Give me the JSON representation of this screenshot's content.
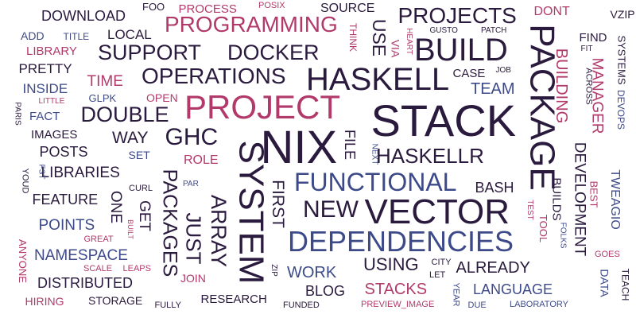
{
  "colors": {
    "dark": "#2a1a3e",
    "pink": "#b23a6a",
    "blue": "#3d4a8a"
  },
  "words": [
    {
      "text": "NIX",
      "color": "dark"
    },
    {
      "text": "STACK",
      "color": "dark"
    },
    {
      "text": "PROJECT",
      "color": "pink"
    },
    {
      "text": "SYSTEM",
      "color": "dark"
    },
    {
      "text": "PACKAGE",
      "color": "dark"
    },
    {
      "text": "HASKELL",
      "color": "dark"
    },
    {
      "text": "VECTOR",
      "color": "dark"
    },
    {
      "text": "DEPENDENCIES",
      "color": "blue"
    },
    {
      "text": "BUILD",
      "color": "dark"
    },
    {
      "text": "FUNCTIONAL",
      "color": "blue"
    },
    {
      "text": "PROGRAMMING",
      "color": "pink"
    },
    {
      "text": "PROJECTS",
      "color": "dark"
    },
    {
      "text": "HASKELLR",
      "color": "dark"
    },
    {
      "text": "NEW",
      "color": "dark"
    },
    {
      "text": "OPERATIONS",
      "color": "dark"
    },
    {
      "text": "DOCKER",
      "color": "dark"
    },
    {
      "text": "SUPPORT",
      "color": "dark"
    },
    {
      "text": "DOUBLE",
      "color": "dark"
    },
    {
      "text": "GHC",
      "color": "dark"
    },
    {
      "text": "PACKAGES",
      "color": "dark"
    },
    {
      "text": "JUST",
      "color": "dark"
    },
    {
      "text": "ARRAY",
      "color": "dark"
    },
    {
      "text": "FIRST",
      "color": "dark"
    },
    {
      "text": "DEVELOPMENT",
      "color": "dark"
    },
    {
      "text": "BUILDING",
      "color": "pink"
    },
    {
      "text": "MANAGER",
      "color": "pink"
    },
    {
      "text": "USE",
      "color": "dark"
    },
    {
      "text": "USING",
      "color": "dark"
    },
    {
      "text": "ALREADY",
      "color": "dark"
    },
    {
      "text": "STACKS",
      "color": "pink"
    },
    {
      "text": "WORK",
      "color": "blue"
    },
    {
      "text": "TEAM",
      "color": "blue"
    },
    {
      "text": "LANGUAGE",
      "color": "blue"
    },
    {
      "text": "BLOG",
      "color": "dark"
    },
    {
      "text": "POINTS",
      "color": "blue"
    },
    {
      "text": "NAMESPACE",
      "color": "blue"
    },
    {
      "text": "LIBRARIES",
      "color": "dark"
    },
    {
      "text": "FEATURE",
      "color": "dark"
    },
    {
      "text": "DISTRIBUTED",
      "color": "dark"
    },
    {
      "text": "POSTS",
      "color": "dark"
    },
    {
      "text": "WAY",
      "color": "dark"
    },
    {
      "text": "ONE",
      "color": "dark"
    },
    {
      "text": "GET",
      "color": "dark"
    },
    {
      "text": "TIME",
      "color": "pink"
    },
    {
      "text": "LOCAL",
      "color": "dark"
    },
    {
      "text": "DOWNLOAD",
      "color": "dark"
    },
    {
      "text": "PRETTY",
      "color": "dark"
    },
    {
      "text": "INSIDE",
      "color": "blue"
    },
    {
      "text": "BASH",
      "color": "dark"
    },
    {
      "text": "FILE",
      "color": "dark"
    },
    {
      "text": "BUILDS",
      "color": "dark"
    },
    {
      "text": "TWEAGIO",
      "color": "blue"
    },
    {
      "text": "ROLE",
      "color": "pink"
    },
    {
      "text": "CASE",
      "color": "dark"
    },
    {
      "text": "DONT",
      "color": "pink"
    },
    {
      "text": "SOURCE",
      "color": "dark"
    },
    {
      "text": "PROCESS",
      "color": "pink"
    },
    {
      "text": "FIND",
      "color": "dark"
    },
    {
      "text": "VZIP",
      "color": "dark"
    },
    {
      "text": "SYSTEMS",
      "color": "dark"
    },
    {
      "text": "DEVOPS",
      "color": "blue"
    },
    {
      "text": "ACROSS",
      "color": "dark"
    },
    {
      "text": "BEST",
      "color": "pink"
    },
    {
      "text": "TOOL",
      "color": "pink"
    },
    {
      "text": "DATA",
      "color": "blue"
    },
    {
      "text": "TEACH",
      "color": "dark"
    },
    {
      "text": "RESEARCH",
      "color": "dark"
    },
    {
      "text": "STORAGE",
      "color": "dark"
    },
    {
      "text": "HIRING",
      "color": "pink"
    },
    {
      "text": "ANYONE",
      "color": "pink"
    },
    {
      "text": "IMAGES",
      "color": "dark"
    },
    {
      "text": "FACT",
      "color": "blue"
    },
    {
      "text": "LIBRARY",
      "color": "pink"
    },
    {
      "text": "ADD",
      "color": "blue"
    },
    {
      "text": "TITLE",
      "color": "blue"
    },
    {
      "text": "FOO",
      "color": "dark"
    },
    {
      "text": "POSIX",
      "color": "pink"
    },
    {
      "text": "THINK",
      "color": "pink"
    },
    {
      "text": "VIA",
      "color": "pink"
    },
    {
      "text": "HEART",
      "color": "pink"
    },
    {
      "text": "GUSTO",
      "color": "dark"
    },
    {
      "text": "PATCH",
      "color": "dark"
    },
    {
      "text": "JOB",
      "color": "dark"
    },
    {
      "text": "FIT",
      "color": "dark"
    },
    {
      "text": "GLPK",
      "color": "blue"
    },
    {
      "text": "OPEN",
      "color": "pink"
    },
    {
      "text": "LITTLE",
      "color": "pink"
    },
    {
      "text": "PARIS",
      "color": "dark"
    },
    {
      "text": "YOUD",
      "color": "dark"
    },
    {
      "text": "FST",
      "color": "blue"
    },
    {
      "text": "SET",
      "color": "blue"
    },
    {
      "text": "CURL",
      "color": "dark"
    },
    {
      "text": "PAR",
      "color": "blue"
    },
    {
      "text": "BUILT",
      "color": "pink"
    },
    {
      "text": "GREAT",
      "color": "pink"
    },
    {
      "text": "SCALE",
      "color": "pink"
    },
    {
      "text": "LEAPS",
      "color": "pink"
    },
    {
      "text": "JOIN",
      "color": "pink"
    },
    {
      "text": "FULLY",
      "color": "dark"
    },
    {
      "text": "ZIP",
      "color": "dark"
    },
    {
      "text": "FUNDED",
      "color": "dark"
    },
    {
      "text": "CITY",
      "color": "dark"
    },
    {
      "text": "LET",
      "color": "dark"
    },
    {
      "text": "YEAR",
      "color": "blue"
    },
    {
      "text": "DUE",
      "color": "blue"
    },
    {
      "text": "PREVIEW_IMAGE",
      "color": "pink"
    },
    {
      "text": "LABORATORY",
      "color": "blue"
    },
    {
      "text": "NEXT",
      "color": "blue"
    },
    {
      "text": "TEST",
      "color": "pink"
    },
    {
      "text": "FOLKS",
      "color": "blue"
    },
    {
      "text": "GOES",
      "color": "pink"
    }
  ]
}
